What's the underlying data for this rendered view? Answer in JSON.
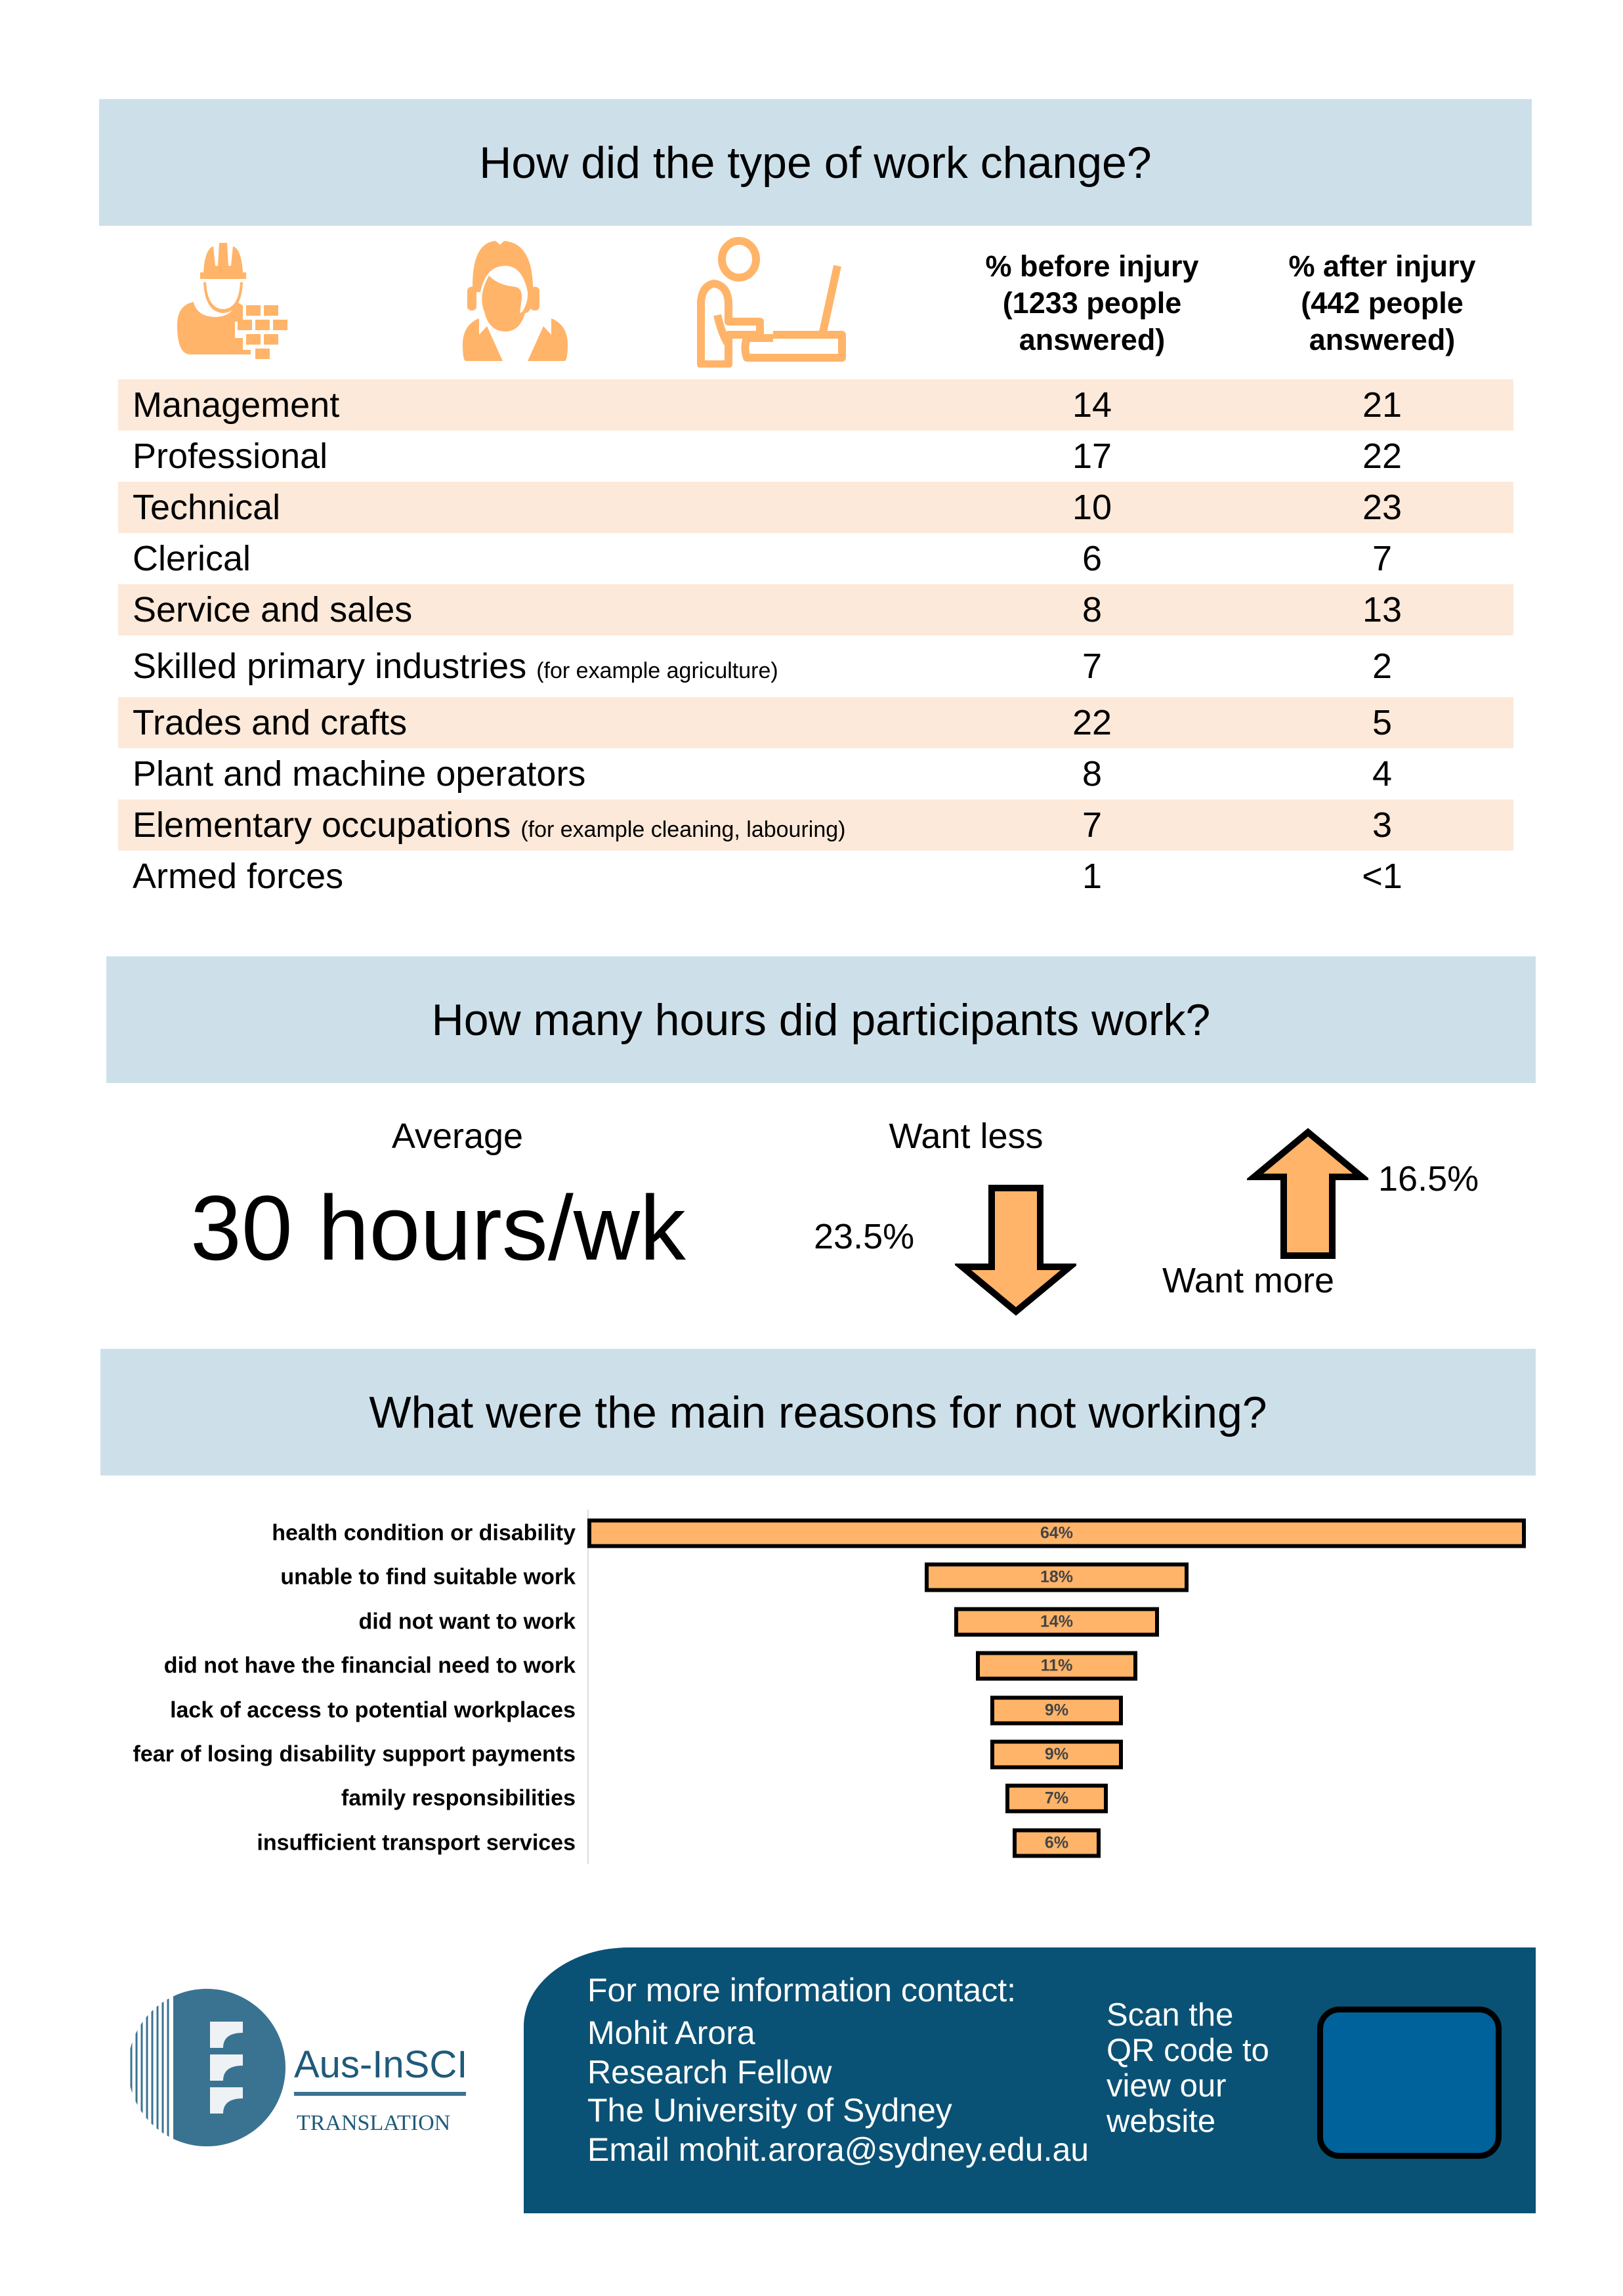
{
  "section1": {
    "title": "How did the type of work change?",
    "icons": [
      "construction-worker-icon",
      "call-center-agent-icon",
      "office-worker-laptop-icon"
    ],
    "col_before": [
      "% before injury",
      "(1233 people",
      "answered)"
    ],
    "col_after": [
      "% after injury",
      "(442 people",
      "answered)"
    ],
    "rows": [
      {
        "label": "Management",
        "note": "",
        "before": "14",
        "after": "21"
      },
      {
        "label": "Professional",
        "note": "",
        "before": "17",
        "after": "22"
      },
      {
        "label": "Technical",
        "note": "",
        "before": "10",
        "after": "23"
      },
      {
        "label": "Clerical",
        "note": "",
        "before": "6",
        "after": "7"
      },
      {
        "label": "Service and sales",
        "note": "",
        "before": "8",
        "after": "13"
      },
      {
        "label": "Skilled primary industries",
        "note": "(for example agriculture)",
        "before": "7",
        "after": "2"
      },
      {
        "label": "Trades and crafts",
        "note": "",
        "before": "22",
        "after": "5"
      },
      {
        "label": "Plant and machine operators",
        "note": "",
        "before": "8",
        "after": "4"
      },
      {
        "label": "Elementary occupations",
        "note": "(for example cleaning, labouring)",
        "before": "7",
        "after": "3"
      },
      {
        "label": "Armed forces",
        "note": "",
        "before": "1",
        "after": "<1"
      }
    ]
  },
  "section2": {
    "title": "How many hours did participants work?",
    "average_label": "Average",
    "average_value": "30 hours/wk",
    "want_less_label": "Want less",
    "want_less_value": "23.5%",
    "want_more_label": "Want more",
    "want_more_value": "16.5%"
  },
  "section3": {
    "title": "What were the main reasons for not working?"
  },
  "chart_data": {
    "type": "bar",
    "orientation": "horizontal-funnel",
    "categories": [
      "health condition or disability",
      "unable to find suitable work",
      "did not want to work",
      "did not have the financial need to work",
      "lack of access to potential workplaces",
      "fear of losing disability support payments",
      "family responsibilities",
      "insufficient transport services"
    ],
    "values": [
      64,
      18,
      14,
      11,
      9,
      9,
      7,
      6
    ],
    "data_labels": [
      "64%",
      "18%",
      "14%",
      "11%",
      "9%",
      "9%",
      "7%",
      "6%"
    ],
    "unit": "%",
    "bar_color": "#ffb469",
    "grid": false
  },
  "footer": {
    "logo_text": "Aus-InSCI",
    "logo_subtext": "TRANSLATION",
    "contact_lines": [
      "For more information contact:",
      "Mohit Arora",
      "Research Fellow",
      "The University of Sydney",
      "Email mohit.arora@sydney.edu.au"
    ],
    "qr_lines": [
      "Scan the",
      "QR code to",
      "view our",
      "website"
    ]
  },
  "colors": {
    "header_bg": "#cde0ea",
    "row_shade": "#fde9d9",
    "accent_orange": "#ffb469",
    "panel_blue": "#0a5275",
    "qr_blue": "#00629a"
  }
}
